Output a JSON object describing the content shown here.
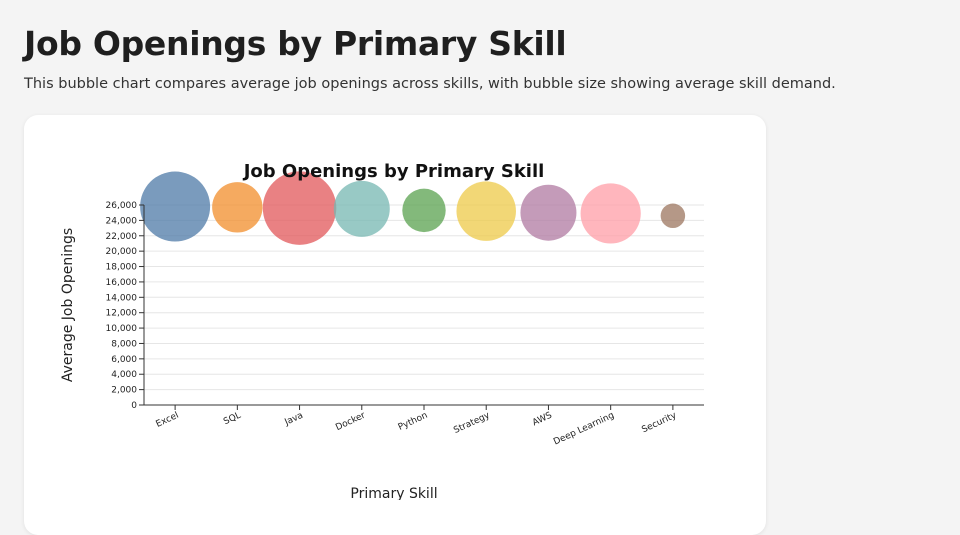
{
  "page": {
    "title": "Job Openings by Primary Skill",
    "subtitle": "This bubble chart compares average job openings across skills, with bubble size showing average skill demand."
  },
  "chart_data": {
    "type": "scatter",
    "title": "Job Openings by Primary Skill",
    "xlabel": "Primary Skill",
    "ylabel": "Average Job Openings",
    "ylim": [
      0,
      26000
    ],
    "yticks": [
      0,
      2000,
      4000,
      6000,
      8000,
      10000,
      12000,
      14000,
      16000,
      18000,
      20000,
      22000,
      24000,
      26000
    ],
    "ytick_labels": [
      "0",
      "2,000",
      "4,000",
      "6,000",
      "8,000",
      "10,000",
      "12,000",
      "14,000",
      "16,000",
      "18,000",
      "20,000",
      "22,000",
      "24,000",
      "26,000"
    ],
    "grid": true,
    "categories": [
      "Excel",
      "SQL",
      "Java",
      "Docker",
      "Python",
      "Strategy",
      "AWS",
      "Deep Learning",
      "Security"
    ],
    "values": [
      25800,
      25700,
      25600,
      25500,
      25300,
      25200,
      25000,
      24900,
      24600
    ],
    "bubble_size_relative": [
      1.0,
      0.72,
      1.05,
      0.8,
      0.62,
      0.85,
      0.8,
      0.86,
      0.35
    ],
    "colors": [
      "#4e79a7",
      "#f28e2b",
      "#e15759",
      "#76b7b2",
      "#59a14f",
      "#edc948",
      "#b07aa1",
      "#ff9da7",
      "#9c755f"
    ]
  }
}
